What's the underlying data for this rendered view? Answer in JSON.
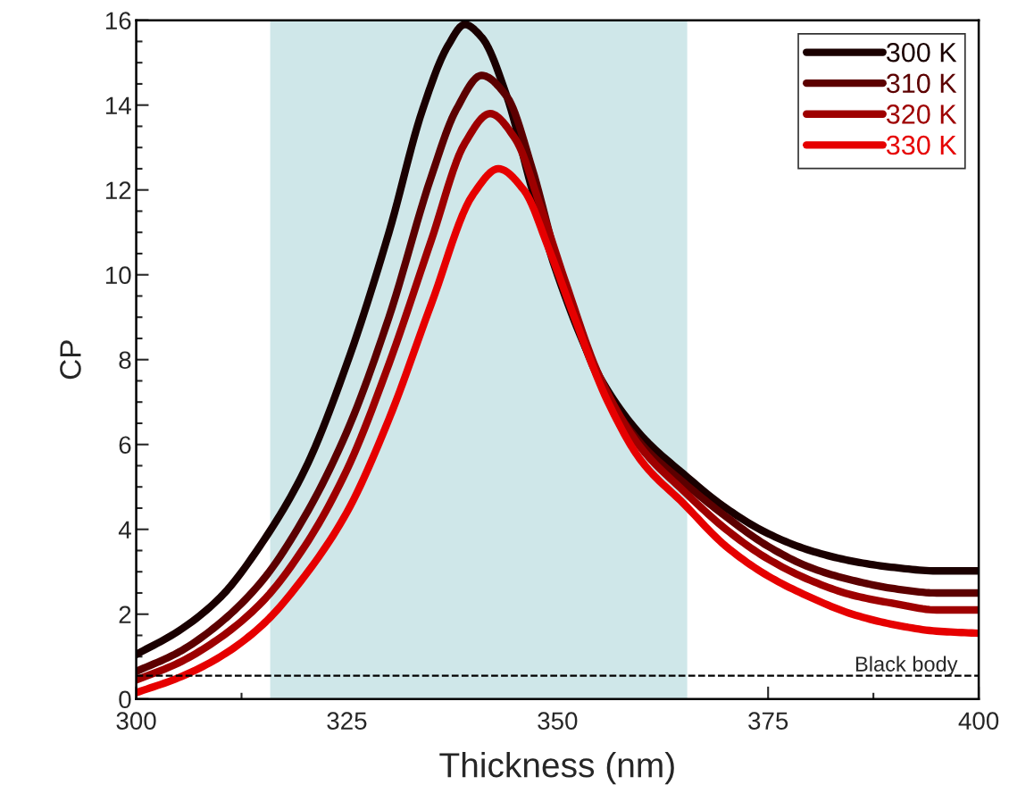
{
  "chart_data": {
    "type": "line",
    "xlabel": "Thickness (nm)",
    "ylabel": "CP",
    "xlim": [
      300,
      400
    ],
    "xticks": [
      300,
      325,
      350,
      375,
      400
    ],
    "ylim": [
      0,
      16
    ],
    "yticks": [
      0,
      2,
      4,
      6,
      8,
      10,
      12,
      14,
      16
    ],
    "grid": false,
    "legend": "top right",
    "line_style": "solid",
    "marker": "none",
    "series": [
      {
        "name": "300 K",
        "color": "#1a0000",
        "x": [
          300,
          305,
          310,
          315,
          320,
          325,
          330,
          334,
          337,
          339,
          341,
          344,
          347,
          350,
          355,
          360,
          365,
          370,
          375,
          380,
          385,
          390,
          395,
          400
        ],
        "values": [
          1.05,
          1.6,
          2.4,
          3.7,
          5.4,
          7.9,
          11.0,
          13.9,
          15.4,
          15.9,
          15.6,
          14.2,
          12.0,
          10.0,
          7.6,
          6.2,
          5.3,
          4.5,
          3.9,
          3.5,
          3.25,
          3.1,
          3.02,
          3.02
        ]
      },
      {
        "name": "310 K",
        "color": "#5c0000",
        "x": [
          300,
          305,
          310,
          315,
          320,
          325,
          330,
          335,
          338,
          341,
          344,
          347,
          350,
          355,
          360,
          365,
          370,
          375,
          380,
          385,
          390,
          395,
          400
        ],
        "values": [
          0.65,
          1.1,
          1.8,
          2.8,
          4.3,
          6.3,
          9.0,
          12.3,
          13.9,
          14.7,
          14.2,
          12.5,
          10.3,
          7.5,
          6.0,
          5.1,
          4.3,
          3.6,
          3.1,
          2.8,
          2.6,
          2.5,
          2.5
        ]
      },
      {
        "name": "320 K",
        "color": "#9e0000",
        "x": [
          300,
          305,
          310,
          315,
          320,
          325,
          330,
          335,
          339,
          342,
          345,
          348,
          351,
          355,
          360,
          365,
          370,
          375,
          380,
          385,
          390,
          395,
          400
        ],
        "values": [
          0.45,
          0.85,
          1.45,
          2.3,
          3.6,
          5.4,
          7.9,
          10.8,
          13.1,
          13.8,
          13.2,
          11.6,
          9.8,
          7.6,
          5.9,
          4.9,
          4.0,
          3.3,
          2.8,
          2.45,
          2.25,
          2.1,
          2.1
        ]
      },
      {
        "name": "330 K",
        "color": "#e60000",
        "x": [
          300,
          305,
          310,
          315,
          320,
          325,
          330,
          335,
          340,
          343,
          346,
          349,
          352,
          356,
          360,
          365,
          370,
          375,
          380,
          385,
          390,
          395,
          400
        ],
        "values": [
          0.15,
          0.5,
          1.0,
          1.75,
          2.9,
          4.4,
          6.6,
          9.3,
          11.9,
          12.5,
          12.0,
          10.6,
          9.0,
          7.0,
          5.6,
          4.6,
          3.6,
          2.9,
          2.4,
          2.0,
          1.75,
          1.6,
          1.55
        ]
      }
    ],
    "ref_lines": [
      {
        "axis": "y",
        "value": 0.55,
        "label": "Black body",
        "color": "#000000",
        "line_style": "dashed"
      }
    ],
    "bands": [
      {
        "axis": "x",
        "from": 315.9,
        "to": 365.4,
        "color": "#cfe7e9"
      }
    ]
  }
}
